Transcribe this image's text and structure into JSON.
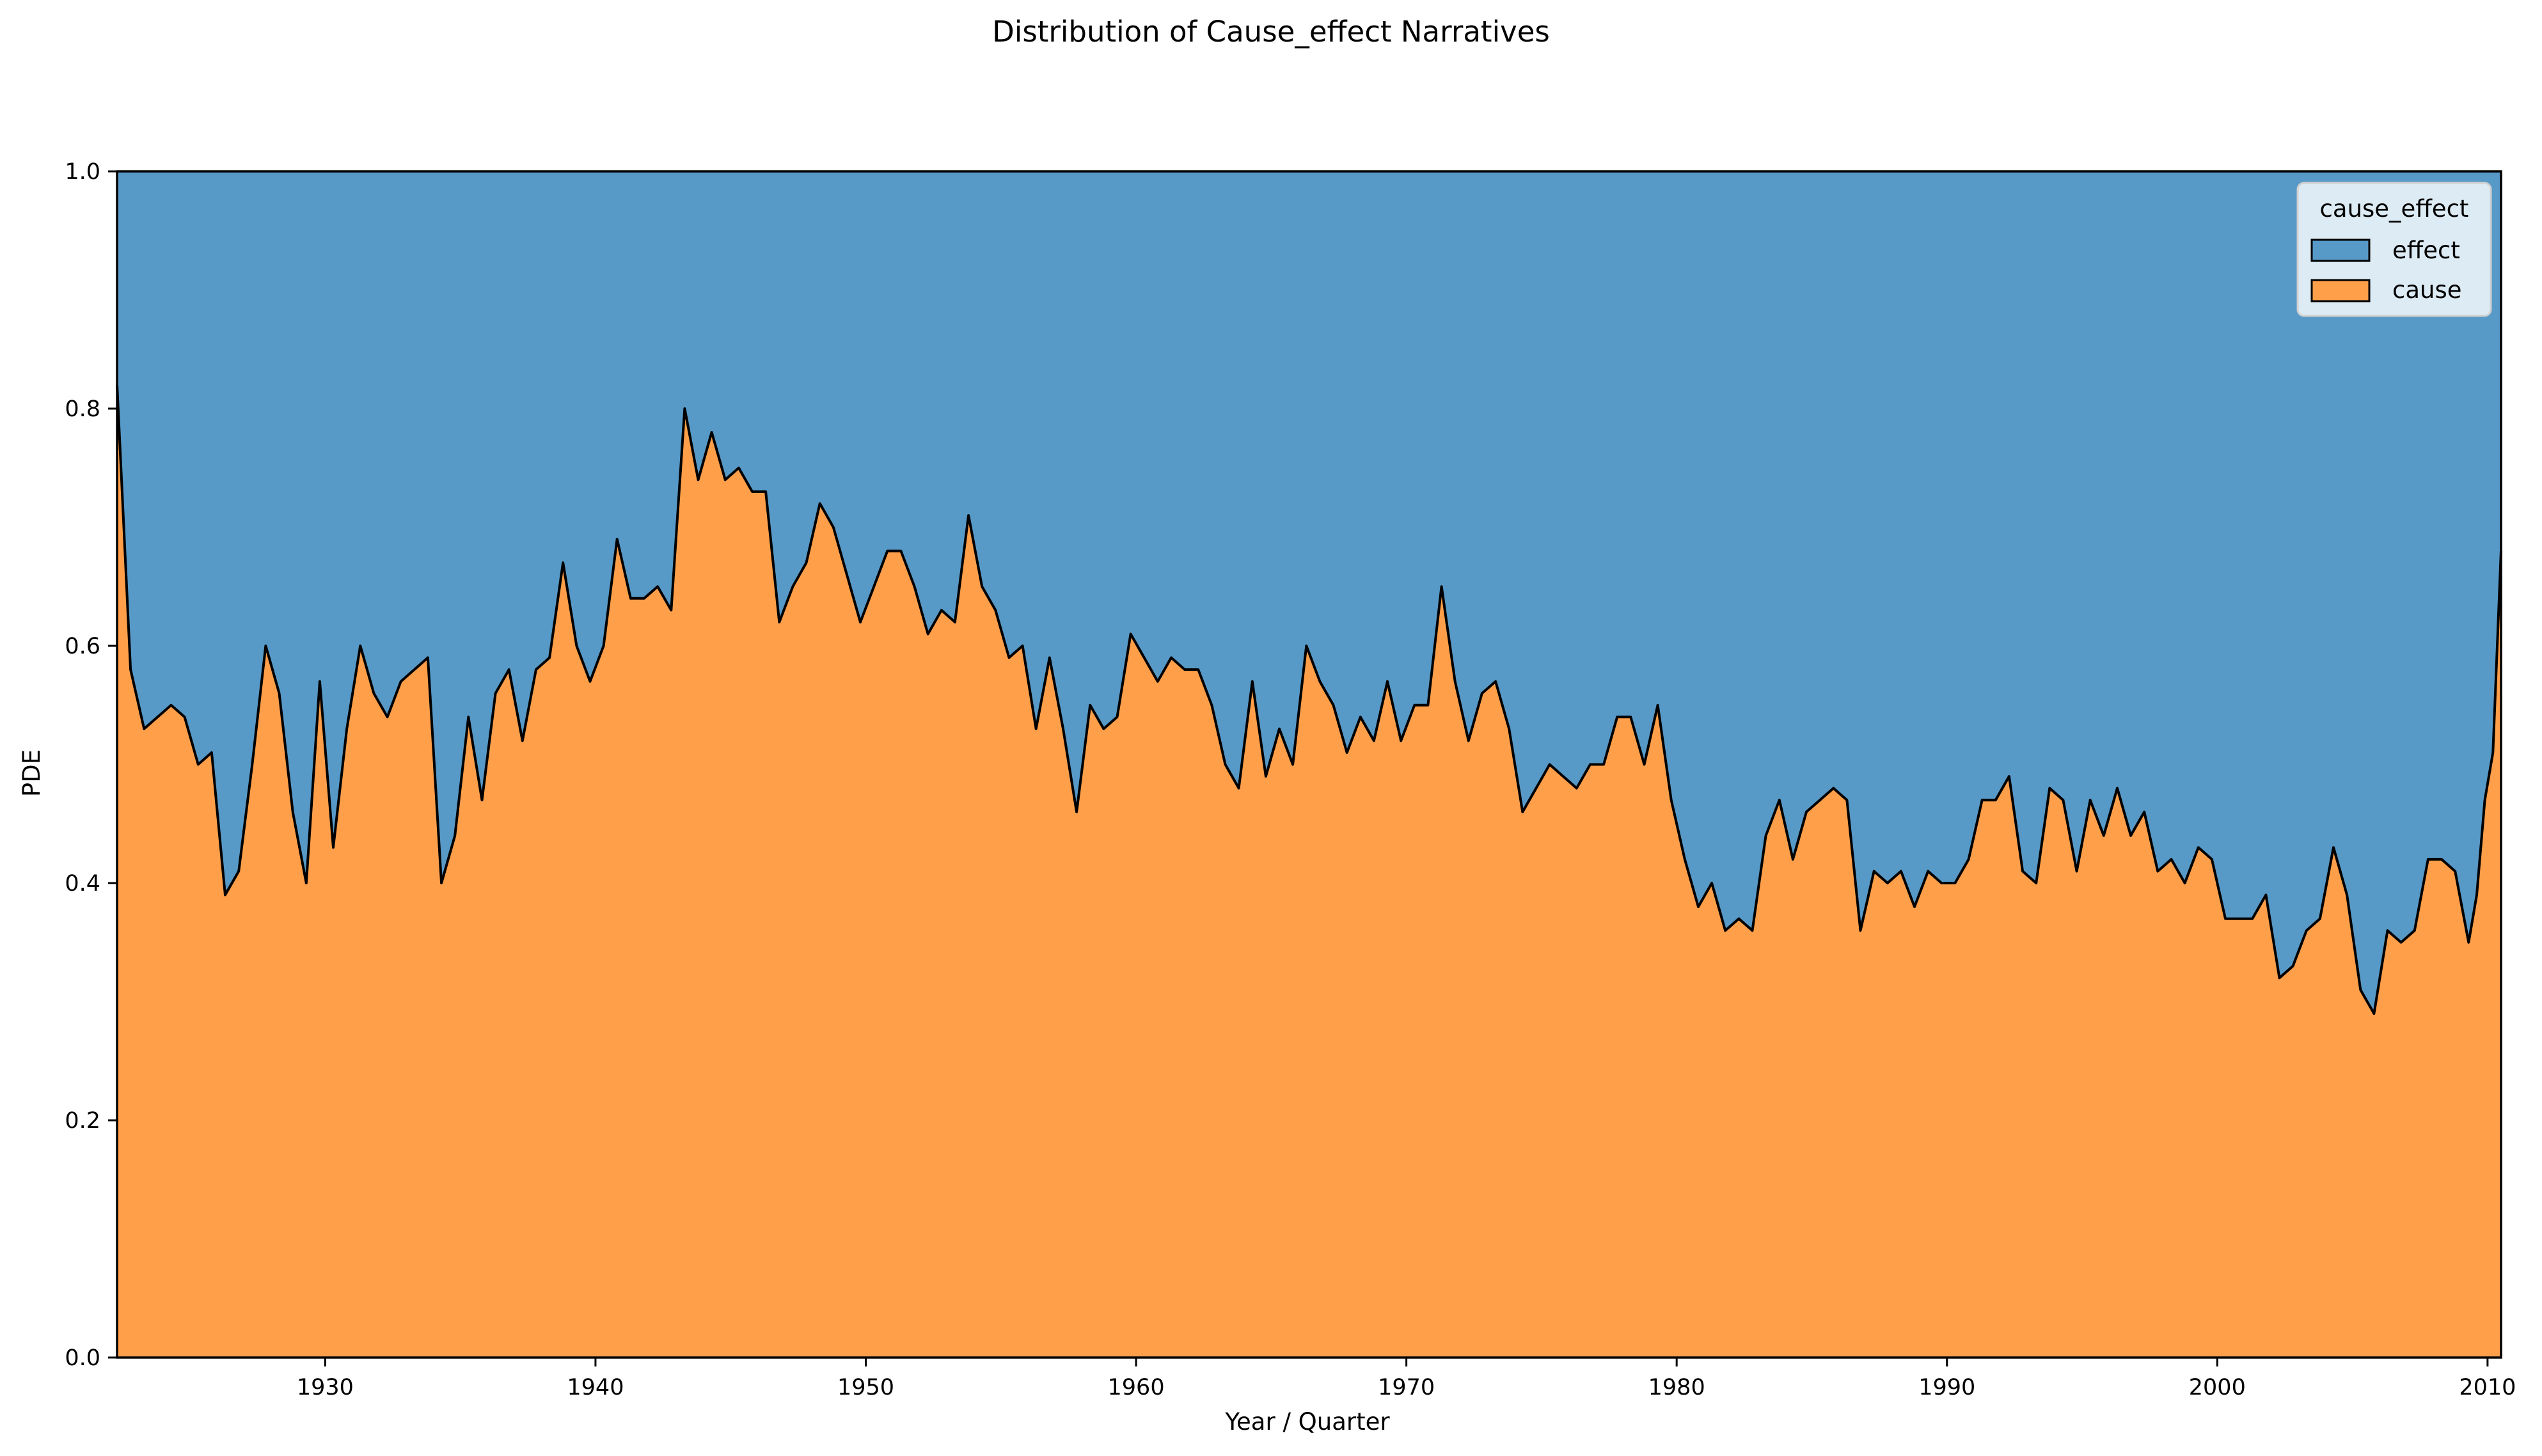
{
  "chart_data": {
    "type": "area",
    "stacked": "normalized",
    "title": "Distribution of Cause_effect Narratives",
    "xlabel": "Year / Quarter",
    "ylabel": "PDE",
    "xlim": [
      1922.3,
      2010.5
    ],
    "ylim": [
      0.0,
      1.0
    ],
    "x_ticks": [
      1930,
      1940,
      1950,
      1960,
      1970,
      1980,
      1990,
      2000,
      2010
    ],
    "y_ticks": [
      0.0,
      0.2,
      0.4,
      0.6,
      0.8,
      1.0
    ],
    "x_tick_labels": [
      "1930",
      "1940",
      "1950",
      "1960",
      "1970",
      "1980",
      "1990",
      "2000",
      "2010"
    ],
    "y_tick_labels": [
      "0.0",
      "0.2",
      "0.4",
      "0.6",
      "0.8",
      "1.0"
    ],
    "grid": false,
    "legend": {
      "title": "cause_effect",
      "placement": "top-right",
      "entries": [
        {
          "label": "effect",
          "color": "#5799c7"
        },
        {
          "label": "cause",
          "color": "#ff9f4a"
        }
      ]
    },
    "colors": {
      "effect": "#5799c7",
      "cause": "#ff9f4a",
      "line": "#000000"
    },
    "series": [
      {
        "name": "cause",
        "points": [
          [
            1922.3,
            0.82
          ],
          [
            1922.8,
            0.58
          ],
          [
            1923.3,
            0.53
          ],
          [
            1923.8,
            0.54
          ],
          [
            1924.3,
            0.55
          ],
          [
            1924.8,
            0.54
          ],
          [
            1925.3,
            0.5
          ],
          [
            1925.8,
            0.51
          ],
          [
            1926.3,
            0.39
          ],
          [
            1926.8,
            0.41
          ],
          [
            1927.3,
            0.5
          ],
          [
            1927.8,
            0.6
          ],
          [
            1928.3,
            0.56
          ],
          [
            1928.8,
            0.46
          ],
          [
            1929.3,
            0.4
          ],
          [
            1929.8,
            0.57
          ],
          [
            1930.3,
            0.43
          ],
          [
            1930.8,
            0.53
          ],
          [
            1931.3,
            0.6
          ],
          [
            1931.8,
            0.56
          ],
          [
            1932.3,
            0.54
          ],
          [
            1932.8,
            0.57
          ],
          [
            1933.3,
            0.58
          ],
          [
            1933.8,
            0.59
          ],
          [
            1934.3,
            0.4
          ],
          [
            1934.8,
            0.44
          ],
          [
            1935.3,
            0.54
          ],
          [
            1935.8,
            0.47
          ],
          [
            1936.3,
            0.56
          ],
          [
            1936.8,
            0.58
          ],
          [
            1937.3,
            0.52
          ],
          [
            1937.8,
            0.58
          ],
          [
            1938.3,
            0.59
          ],
          [
            1938.8,
            0.67
          ],
          [
            1939.3,
            0.6
          ],
          [
            1939.8,
            0.57
          ],
          [
            1940.3,
            0.6
          ],
          [
            1940.8,
            0.69
          ],
          [
            1941.3,
            0.64
          ],
          [
            1941.8,
            0.64
          ],
          [
            1942.3,
            0.65
          ],
          [
            1942.8,
            0.63
          ],
          [
            1943.3,
            0.8
          ],
          [
            1943.8,
            0.74
          ],
          [
            1944.3,
            0.78
          ],
          [
            1944.8,
            0.74
          ],
          [
            1945.3,
            0.75
          ],
          [
            1945.8,
            0.73
          ],
          [
            1946.3,
            0.73
          ],
          [
            1946.8,
            0.62
          ],
          [
            1947.3,
            0.65
          ],
          [
            1947.8,
            0.67
          ],
          [
            1948.3,
            0.72
          ],
          [
            1948.8,
            0.7
          ],
          [
            1949.3,
            0.66
          ],
          [
            1949.8,
            0.62
          ],
          [
            1950.3,
            0.65
          ],
          [
            1950.8,
            0.68
          ],
          [
            1951.3,
            0.68
          ],
          [
            1951.8,
            0.65
          ],
          [
            1952.3,
            0.61
          ],
          [
            1952.8,
            0.63
          ],
          [
            1953.3,
            0.62
          ],
          [
            1953.8,
            0.71
          ],
          [
            1954.3,
            0.65
          ],
          [
            1954.8,
            0.63
          ],
          [
            1955.3,
            0.59
          ],
          [
            1955.8,
            0.6
          ],
          [
            1956.3,
            0.53
          ],
          [
            1956.8,
            0.59
          ],
          [
            1957.3,
            0.53
          ],
          [
            1957.8,
            0.46
          ],
          [
            1958.3,
            0.55
          ],
          [
            1958.8,
            0.53
          ],
          [
            1959.3,
            0.54
          ],
          [
            1959.8,
            0.61
          ],
          [
            1960.3,
            0.59
          ],
          [
            1960.8,
            0.57
          ],
          [
            1961.3,
            0.59
          ],
          [
            1961.8,
            0.58
          ],
          [
            1962.3,
            0.58
          ],
          [
            1962.8,
            0.55
          ],
          [
            1963.3,
            0.5
          ],
          [
            1963.8,
            0.48
          ],
          [
            1964.3,
            0.57
          ],
          [
            1964.8,
            0.49
          ],
          [
            1965.3,
            0.53
          ],
          [
            1965.8,
            0.5
          ],
          [
            1966.3,
            0.6
          ],
          [
            1966.8,
            0.57
          ],
          [
            1967.3,
            0.55
          ],
          [
            1967.8,
            0.51
          ],
          [
            1968.3,
            0.54
          ],
          [
            1968.8,
            0.52
          ],
          [
            1969.3,
            0.57
          ],
          [
            1969.8,
            0.52
          ],
          [
            1970.3,
            0.55
          ],
          [
            1970.8,
            0.55
          ],
          [
            1971.3,
            0.65
          ],
          [
            1971.8,
            0.57
          ],
          [
            1972.3,
            0.52
          ],
          [
            1972.8,
            0.56
          ],
          [
            1973.3,
            0.57
          ],
          [
            1973.8,
            0.53
          ],
          [
            1974.3,
            0.46
          ],
          [
            1974.8,
            0.48
          ],
          [
            1975.3,
            0.5
          ],
          [
            1975.8,
            0.49
          ],
          [
            1976.3,
            0.48
          ],
          [
            1976.8,
            0.5
          ],
          [
            1977.3,
            0.5
          ],
          [
            1977.8,
            0.54
          ],
          [
            1978.3,
            0.54
          ],
          [
            1978.8,
            0.5
          ],
          [
            1979.3,
            0.55
          ],
          [
            1979.8,
            0.47
          ],
          [
            1980.3,
            0.42
          ],
          [
            1980.8,
            0.38
          ],
          [
            1981.3,
            0.4
          ],
          [
            1981.8,
            0.36
          ],
          [
            1982.3,
            0.37
          ],
          [
            1982.8,
            0.36
          ],
          [
            1983.3,
            0.44
          ],
          [
            1983.8,
            0.47
          ],
          [
            1984.3,
            0.42
          ],
          [
            1984.8,
            0.46
          ],
          [
            1985.3,
            0.47
          ],
          [
            1985.8,
            0.48
          ],
          [
            1986.3,
            0.47
          ],
          [
            1986.8,
            0.36
          ],
          [
            1987.3,
            0.41
          ],
          [
            1987.8,
            0.4
          ],
          [
            1988.3,
            0.41
          ],
          [
            1988.8,
            0.38
          ],
          [
            1989.3,
            0.41
          ],
          [
            1989.8,
            0.4
          ],
          [
            1990.3,
            0.4
          ],
          [
            1990.8,
            0.42
          ],
          [
            1991.3,
            0.47
          ],
          [
            1991.8,
            0.47
          ],
          [
            1992.3,
            0.49
          ],
          [
            1992.8,
            0.41
          ],
          [
            1993.3,
            0.4
          ],
          [
            1993.8,
            0.48
          ],
          [
            1994.3,
            0.47
          ],
          [
            1994.8,
            0.41
          ],
          [
            1995.3,
            0.47
          ],
          [
            1995.8,
            0.44
          ],
          [
            1996.3,
            0.48
          ],
          [
            1996.8,
            0.44
          ],
          [
            1997.3,
            0.46
          ],
          [
            1997.8,
            0.41
          ],
          [
            1998.3,
            0.42
          ],
          [
            1998.8,
            0.4
          ],
          [
            1999.3,
            0.43
          ],
          [
            1999.8,
            0.42
          ],
          [
            2000.3,
            0.37
          ],
          [
            2000.8,
            0.37
          ],
          [
            2001.3,
            0.37
          ],
          [
            2001.8,
            0.39
          ],
          [
            2002.3,
            0.32
          ],
          [
            2002.8,
            0.33
          ],
          [
            2003.3,
            0.36
          ],
          [
            2003.8,
            0.37
          ],
          [
            2004.3,
            0.43
          ],
          [
            2004.8,
            0.39
          ],
          [
            2005.3,
            0.31
          ],
          [
            2005.8,
            0.29
          ],
          [
            2006.3,
            0.36
          ],
          [
            2006.8,
            0.35
          ],
          [
            2007.3,
            0.36
          ],
          [
            2007.8,
            0.42
          ],
          [
            2008.3,
            0.42
          ],
          [
            2008.8,
            0.41
          ],
          [
            2009.3,
            0.35
          ],
          [
            2009.6,
            0.39
          ],
          [
            2009.9,
            0.47
          ],
          [
            2010.2,
            0.51
          ],
          [
            2010.5,
            0.68
          ]
        ]
      },
      {
        "name": "effect",
        "fills_to": 1.0
      }
    ]
  }
}
